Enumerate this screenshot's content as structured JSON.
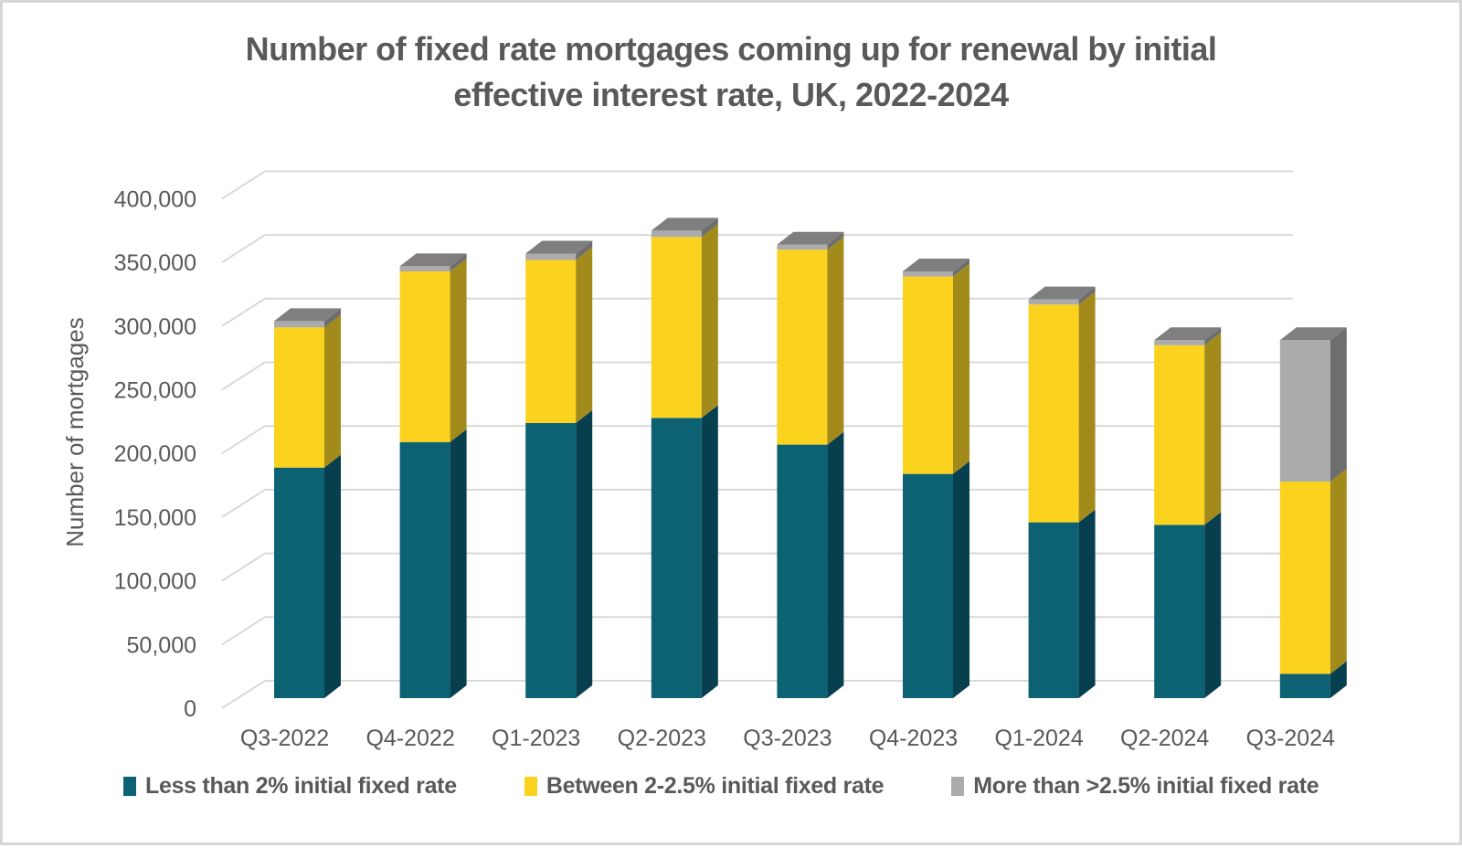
{
  "page": {
    "background": "#FFFFFF",
    "border_color": "#D6D6D6",
    "text_color": "#595959",
    "gridline_color": "#D9D9D9"
  },
  "chart_data": {
    "type": "bar",
    "stacked": true,
    "style": "3d-stacked-column",
    "title": "Number of fixed rate mortgages coming up for renewal by initial effective interest rate, UK, 2022-2024",
    "title_lines": [
      "Number of fixed rate mortgages coming up for renewal by initial",
      "effective interest rate, UK, 2022-2024"
    ],
    "ylabel": "Number of mortgages",
    "xlabel": "",
    "ylim": [
      0,
      400000
    ],
    "ytick_step": 50000,
    "ytick_labels": [
      "0",
      "50,000",
      "100,000",
      "150,000",
      "200,000",
      "250,000",
      "300,000",
      "350,000",
      "400,000"
    ],
    "grid": true,
    "legend_position": "bottom",
    "categories": [
      "Q3-2022",
      "Q4-2022",
      "Q1-2023",
      "Q2-2023",
      "Q3-2023",
      "Q4-2023",
      "Q1-2024",
      "Q2-2024",
      "Q3-2024"
    ],
    "series": [
      {
        "name": "Less than 2% initial fixed rate",
        "color": "#0C6173",
        "side_color": "#083F4E",
        "top_color": "#0A4C5C",
        "values": [
          181000,
          201000,
          216000,
          220000,
          199000,
          176000,
          138000,
          136000,
          19000
        ]
      },
      {
        "name": "Between 2-2.5% initial fixed rate",
        "color": "#FBD21E",
        "side_color": "#A28B1B",
        "top_color": "#C9A71C",
        "values": [
          110000,
          134000,
          128000,
          142000,
          153000,
          155000,
          171000,
          141000,
          151000
        ]
      },
      {
        "name": "More than >2.5% initial fixed rate",
        "color": "#ABABAB",
        "side_color": "#6E6E6E",
        "top_color": "#7F7F7F",
        "values": [
          5000,
          4000,
          5000,
          5000,
          4000,
          4000,
          4000,
          4000,
          111000
        ]
      }
    ],
    "totals": [
      296000,
      339000,
      349000,
      367000,
      356000,
      335000,
      313000,
      281000,
      281000
    ]
  }
}
